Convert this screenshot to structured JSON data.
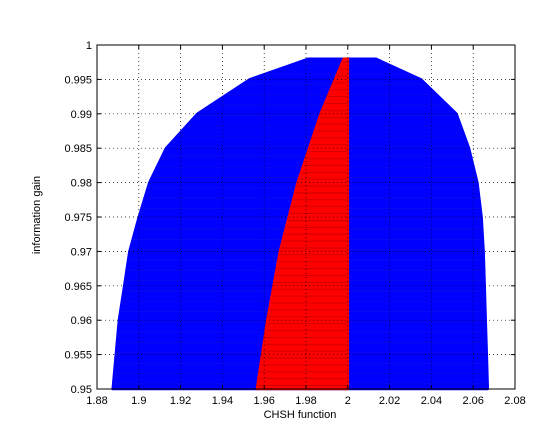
{
  "chart_data": {
    "type": "scatter",
    "title": "",
    "xlabel": "CHSH function",
    "ylabel": "information gain",
    "xlim": [
      1.88,
      2.08
    ],
    "ylim": [
      0.95,
      1.0
    ],
    "x_ticks": [
      1.88,
      1.9,
      1.92,
      1.94,
      1.96,
      1.98,
      2,
      2.02,
      2.04,
      2.06,
      2.08
    ],
    "x_tick_labels": [
      "1.88",
      "1.9",
      "1.92",
      "1.94",
      "1.96",
      "1.98",
      "2",
      "2.02",
      "2.04",
      "2.06",
      "2.08"
    ],
    "y_ticks": [
      0.95,
      0.955,
      0.96,
      0.965,
      0.97,
      0.975,
      0.98,
      0.985,
      0.99,
      0.995,
      1
    ],
    "y_tick_labels": [
      "0.95",
      "0.955",
      "0.96",
      "0.965",
      "0.97",
      "0.975",
      "0.98",
      "0.985",
      "0.99",
      "0.995",
      "1"
    ],
    "grid": "dotted",
    "legend": "none",
    "series": [
      {
        "color": "#0000ff",
        "marker": "dot",
        "region_envelope": [
          {
            "y": 0.95,
            "x_min": 1.8875,
            "x_max": 2.067
          },
          {
            "y": 0.955,
            "x_min": 1.889,
            "x_max": 2.0665
          },
          {
            "y": 0.96,
            "x_min": 1.8905,
            "x_max": 2.066
          },
          {
            "y": 0.965,
            "x_min": 1.893,
            "x_max": 2.0655
          },
          {
            "y": 0.97,
            "x_min": 1.8955,
            "x_max": 2.065
          },
          {
            "y": 0.975,
            "x_min": 1.9,
            "x_max": 2.064
          },
          {
            "y": 0.98,
            "x_min": 1.905,
            "x_max": 2.062
          },
          {
            "y": 0.985,
            "x_min": 1.913,
            "x_max": 2.058
          },
          {
            "y": 0.99,
            "x_min": 1.928,
            "x_max": 2.052
          },
          {
            "y": 0.995,
            "x_min": 1.953,
            "x_max": 2.035
          },
          {
            "y": 0.998,
            "x_min": 1.981,
            "x_max": 2.0135
          }
        ]
      },
      {
        "color": "#ff0000",
        "marker": "dot",
        "region_envelope": [
          {
            "y": 0.95,
            "x_min": 1.9565,
            "x_max": 2.0
          },
          {
            "y": 0.96,
            "x_min": 1.9615,
            "x_max": 2.0
          },
          {
            "y": 0.97,
            "x_min": 1.9675,
            "x_max": 2.0
          },
          {
            "y": 0.98,
            "x_min": 1.976,
            "x_max": 2.0
          },
          {
            "y": 0.99,
            "x_min": 1.987,
            "x_max": 2.0
          },
          {
            "y": 0.998,
            "x_min": 1.998,
            "x_max": 2.0
          }
        ]
      }
    ]
  }
}
